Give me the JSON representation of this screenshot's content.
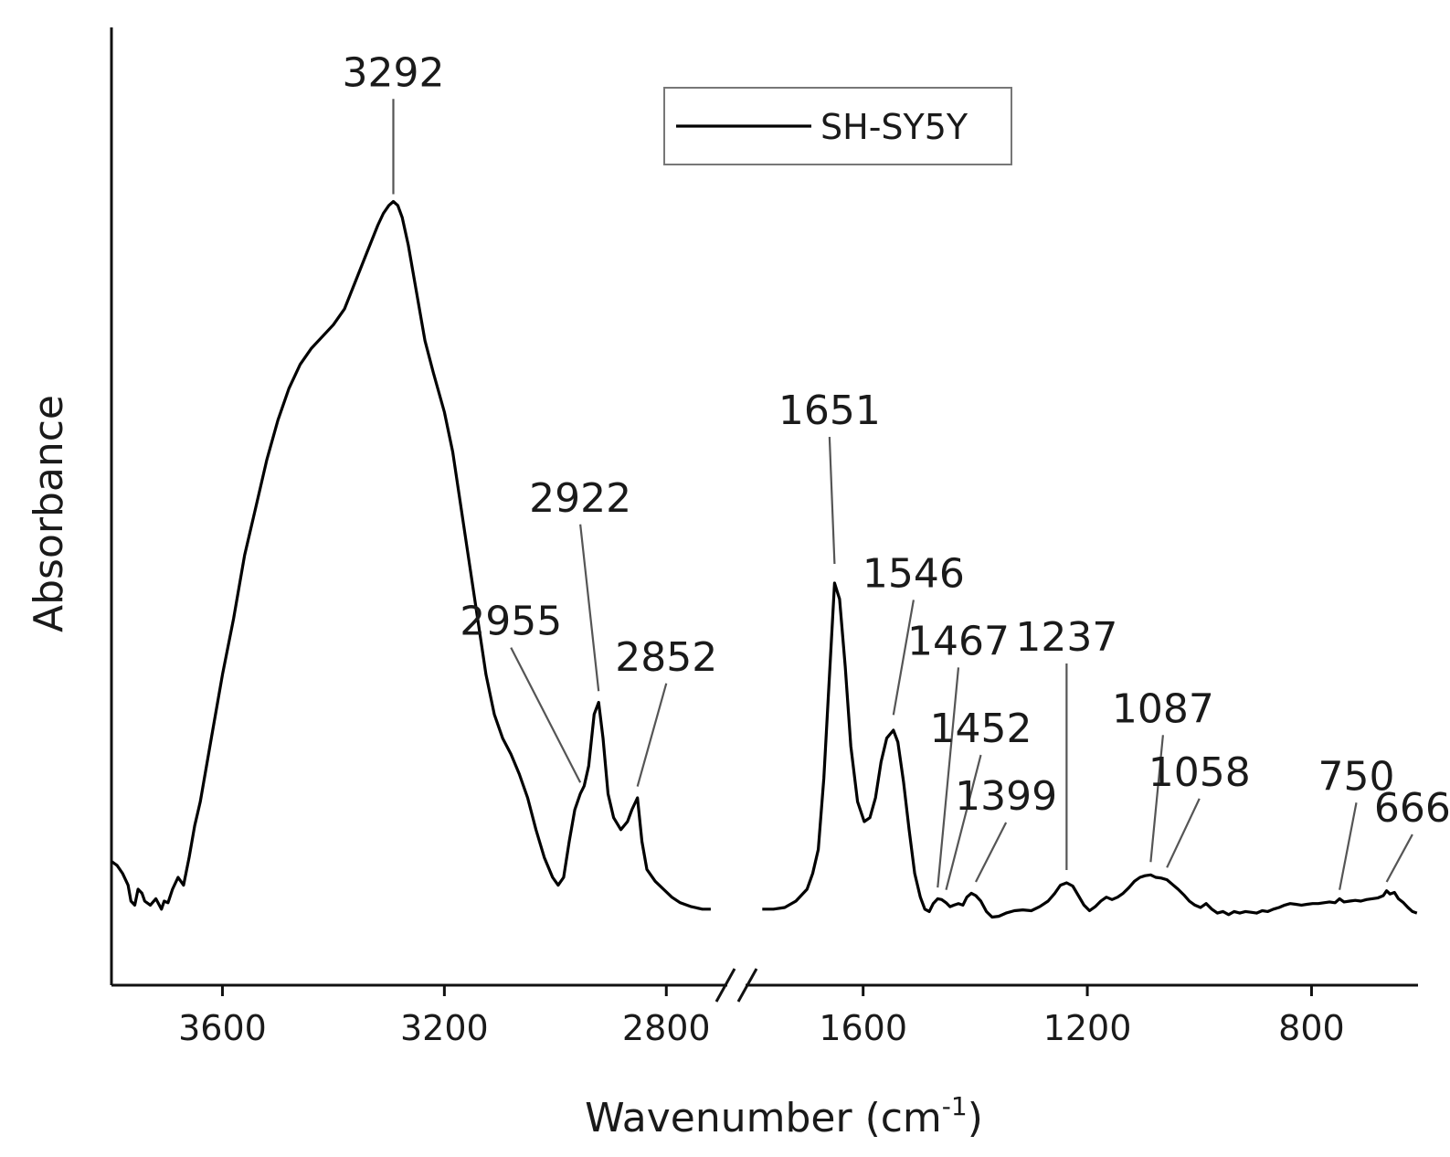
{
  "chart_data": {
    "type": "line",
    "title": "",
    "xlabel": "Wavenumber (cm",
    "xlabel_sup": "-1",
    "xlabel_close": ")",
    "ylabel": "Absorbance",
    "x_reversed": true,
    "axis_break": true,
    "grid": false,
    "legend_position": "top-center",
    "segments": [
      {
        "xlim": [
          3800,
          2700
        ],
        "ticks": [
          {
            "value": 3600,
            "label": "3600"
          },
          {
            "value": 3200,
            "label": "3200"
          },
          {
            "value": 2800,
            "label": "2800"
          }
        ]
      },
      {
        "xlim": [
          1800,
          610
        ],
        "ticks": [
          {
            "value": 1600,
            "label": "1600"
          },
          {
            "value": 1200,
            "label": "1200"
          },
          {
            "value": 800,
            "label": "800"
          }
        ]
      }
    ],
    "ylim": [
      0,
      1.0
    ],
    "series": [
      {
        "name": "SH-SY5Y",
        "color": "#000000",
        "segments": [
          [
            [
              3800,
              0.135
            ],
            [
              3790,
              0.13
            ],
            [
              3780,
              0.12
            ],
            [
              3770,
              0.105
            ],
            [
              3765,
              0.085
            ],
            [
              3758,
              0.08
            ],
            [
              3752,
              0.1
            ],
            [
              3745,
              0.095
            ],
            [
              3740,
              0.085
            ],
            [
              3730,
              0.08
            ],
            [
              3720,
              0.088
            ],
            [
              3710,
              0.075
            ],
            [
              3705,
              0.085
            ],
            [
              3698,
              0.083
            ],
            [
              3690,
              0.1
            ],
            [
              3680,
              0.115
            ],
            [
              3670,
              0.105
            ],
            [
              3660,
              0.14
            ],
            [
              3650,
              0.18
            ],
            [
              3640,
              0.21
            ],
            [
              3620,
              0.29
            ],
            [
              3600,
              0.37
            ],
            [
              3580,
              0.44
            ],
            [
              3560,
              0.52
            ],
            [
              3540,
              0.58
            ],
            [
              3520,
              0.64
            ],
            [
              3500,
              0.69
            ],
            [
              3480,
              0.73
            ],
            [
              3460,
              0.76
            ],
            [
              3440,
              0.78
            ],
            [
              3420,
              0.795
            ],
            [
              3400,
              0.81
            ],
            [
              3380,
              0.83
            ],
            [
              3360,
              0.865
            ],
            [
              3340,
              0.9
            ],
            [
              3320,
              0.935
            ],
            [
              3310,
              0.95
            ],
            [
              3300,
              0.96
            ],
            [
              3292,
              0.965
            ],
            [
              3284,
              0.96
            ],
            [
              3276,
              0.945
            ],
            [
              3265,
              0.91
            ],
            [
              3250,
              0.85
            ],
            [
              3235,
              0.79
            ],
            [
              3220,
              0.75
            ],
            [
              3200,
              0.7
            ],
            [
              3185,
              0.65
            ],
            [
              3170,
              0.58
            ],
            [
              3155,
              0.51
            ],
            [
              3140,
              0.44
            ],
            [
              3125,
              0.37
            ],
            [
              3110,
              0.32
            ],
            [
              3095,
              0.29
            ],
            [
              3080,
              0.27
            ],
            [
              3065,
              0.245
            ],
            [
              3050,
              0.215
            ],
            [
              3035,
              0.175
            ],
            [
              3020,
              0.14
            ],
            [
              3005,
              0.115
            ],
            [
              2995,
              0.105
            ],
            [
              2985,
              0.115
            ],
            [
              2975,
              0.16
            ],
            [
              2965,
              0.2
            ],
            [
              2955,
              0.22
            ],
            [
              2948,
              0.23
            ],
            [
              2940,
              0.255
            ],
            [
              2930,
              0.32
            ],
            [
              2922,
              0.335
            ],
            [
              2914,
              0.29
            ],
            [
              2905,
              0.22
            ],
            [
              2895,
              0.19
            ],
            [
              2882,
              0.175
            ],
            [
              2870,
              0.185
            ],
            [
              2862,
              0.2
            ],
            [
              2852,
              0.215
            ],
            [
              2844,
              0.16
            ],
            [
              2835,
              0.125
            ],
            [
              2820,
              0.11
            ],
            [
              2805,
              0.1
            ],
            [
              2790,
              0.09
            ],
            [
              2775,
              0.083
            ],
            [
              2755,
              0.078
            ],
            [
              2735,
              0.075
            ],
            [
              2720,
              0.075
            ]
          ],
          [
            [
              1780,
              0.075
            ],
            [
              1760,
              0.075
            ],
            [
              1740,
              0.077
            ],
            [
              1720,
              0.085
            ],
            [
              1700,
              0.1
            ],
            [
              1690,
              0.12
            ],
            [
              1680,
              0.15
            ],
            [
              1670,
              0.24
            ],
            [
              1660,
              0.37
            ],
            [
              1651,
              0.485
            ],
            [
              1642,
              0.465
            ],
            [
              1632,
              0.38
            ],
            [
              1622,
              0.28
            ],
            [
              1610,
              0.21
            ],
            [
              1598,
              0.185
            ],
            [
              1588,
              0.19
            ],
            [
              1578,
              0.215
            ],
            [
              1568,
              0.26
            ],
            [
              1558,
              0.29
            ],
            [
              1546,
              0.3
            ],
            [
              1538,
              0.285
            ],
            [
              1528,
              0.235
            ],
            [
              1518,
              0.175
            ],
            [
              1508,
              0.12
            ],
            [
              1498,
              0.09
            ],
            [
              1490,
              0.075
            ],
            [
              1482,
              0.072
            ],
            [
              1475,
              0.082
            ],
            [
              1467,
              0.088
            ],
            [
              1460,
              0.087
            ],
            [
              1452,
              0.083
            ],
            [
              1445,
              0.078
            ],
            [
              1438,
              0.08
            ],
            [
              1430,
              0.082
            ],
            [
              1422,
              0.08
            ],
            [
              1415,
              0.09
            ],
            [
              1407,
              0.095
            ],
            [
              1399,
              0.092
            ],
            [
              1390,
              0.085
            ],
            [
              1380,
              0.072
            ],
            [
              1370,
              0.065
            ],
            [
              1358,
              0.066
            ],
            [
              1345,
              0.07
            ],
            [
              1330,
              0.073
            ],
            [
              1315,
              0.074
            ],
            [
              1300,
              0.073
            ],
            [
              1285,
              0.078
            ],
            [
              1270,
              0.085
            ],
            [
              1258,
              0.095
            ],
            [
              1248,
              0.105
            ],
            [
              1237,
              0.108
            ],
            [
              1226,
              0.104
            ],
            [
              1216,
              0.092
            ],
            [
              1206,
              0.08
            ],
            [
              1196,
              0.073
            ],
            [
              1186,
              0.078
            ],
            [
              1176,
              0.085
            ],
            [
              1166,
              0.09
            ],
            [
              1156,
              0.087
            ],
            [
              1146,
              0.09
            ],
            [
              1136,
              0.095
            ],
            [
              1126,
              0.102
            ],
            [
              1116,
              0.11
            ],
            [
              1106,
              0.115
            ],
            [
              1097,
              0.117
            ],
            [
              1087,
              0.118
            ],
            [
              1078,
              0.115
            ],
            [
              1068,
              0.114
            ],
            [
              1058,
              0.112
            ],
            [
              1048,
              0.106
            ],
            [
              1038,
              0.1
            ],
            [
              1028,
              0.093
            ],
            [
              1018,
              0.085
            ],
            [
              1008,
              0.08
            ],
            [
              998,
              0.077
            ],
            [
              988,
              0.082
            ],
            [
              978,
              0.075
            ],
            [
              968,
              0.07
            ],
            [
              958,
              0.072
            ],
            [
              948,
              0.068
            ],
            [
              938,
              0.072
            ],
            [
              928,
              0.07
            ],
            [
              918,
              0.072
            ],
            [
              908,
              0.071
            ],
            [
              898,
              0.07
            ],
            [
              888,
              0.073
            ],
            [
              878,
              0.072
            ],
            [
              868,
              0.075
            ],
            [
              858,
              0.077
            ],
            [
              848,
              0.08
            ],
            [
              838,
              0.082
            ],
            [
              828,
              0.081
            ],
            [
              818,
              0.08
            ],
            [
              808,
              0.081
            ],
            [
              798,
              0.082
            ],
            [
              788,
              0.082
            ],
            [
              778,
              0.083
            ],
            [
              768,
              0.084
            ],
            [
              758,
              0.083
            ],
            [
              750,
              0.088
            ],
            [
              742,
              0.084
            ],
            [
              732,
              0.085
            ],
            [
              722,
              0.086
            ],
            [
              712,
              0.085
            ],
            [
              702,
              0.087
            ],
            [
              692,
              0.088
            ],
            [
              682,
              0.089
            ],
            [
              672,
              0.092
            ],
            [
              666,
              0.098
            ],
            [
              660,
              0.094
            ],
            [
              652,
              0.096
            ],
            [
              645,
              0.088
            ],
            [
              636,
              0.083
            ],
            [
              628,
              0.077
            ],
            [
              620,
              0.072
            ],
            [
              612,
              0.07
            ]
          ]
        ]
      }
    ],
    "annotations": [
      {
        "label": "3292",
        "x": 3292,
        "target_y": 0.965,
        "label_y": 1.11
      },
      {
        "label": "2955",
        "x": 2955,
        "target_y": 0.225,
        "label_y": 0.42,
        "label_x": 3080
      },
      {
        "label": "2922",
        "x": 2922,
        "target_y": 0.34,
        "label_y": 0.575,
        "label_x": 2955
      },
      {
        "label": "2852",
        "x": 2852,
        "target_y": 0.22,
        "label_y": 0.375,
        "label_x": 2800
      },
      {
        "label": "1651",
        "x": 1651,
        "target_y": 0.5,
        "label_y": 0.685,
        "label_x": 1660
      },
      {
        "label": "1546",
        "x": 1546,
        "target_y": 0.31,
        "label_y": 0.48,
        "label_x": 1510
      },
      {
        "label": "1467",
        "x": 1467,
        "target_y": 0.093,
        "label_y": 0.395,
        "label_x": 1430
      },
      {
        "label": "1452",
        "x": 1452,
        "target_y": 0.09,
        "label_y": 0.285,
        "label_x": 1390
      },
      {
        "label": "1399",
        "x": 1399,
        "target_y": 0.1,
        "label_y": 0.2,
        "label_x": 1345
      },
      {
        "label": "1237",
        "x": 1237,
        "target_y": 0.115,
        "label_y": 0.4,
        "label_x": 1237
      },
      {
        "label": "1087",
        "x": 1087,
        "target_y": 0.125,
        "label_y": 0.31,
        "label_x": 1065
      },
      {
        "label": "1058",
        "x": 1058,
        "target_y": 0.118,
        "label_y": 0.23,
        "label_x": 1000
      },
      {
        "label": "750",
        "x": 750,
        "target_y": 0.09,
        "label_y": 0.225,
        "label_x": 720
      },
      {
        "label": "666",
        "x": 666,
        "target_y": 0.1,
        "label_y": 0.185,
        "label_x": 620
      }
    ]
  }
}
